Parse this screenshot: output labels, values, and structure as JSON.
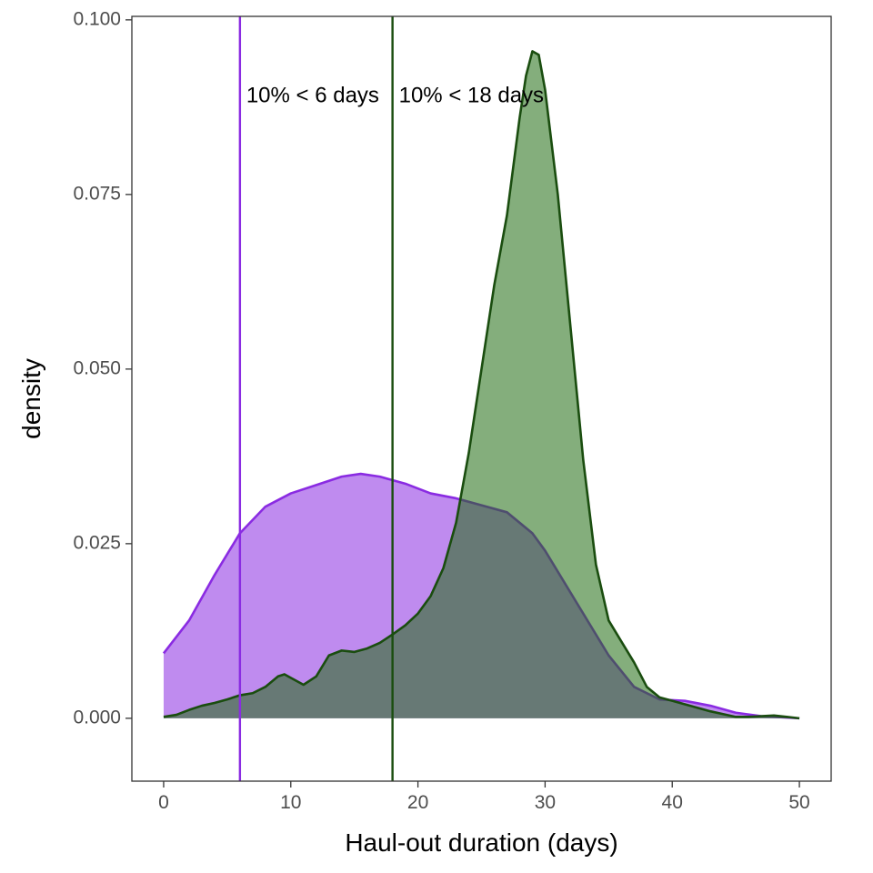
{
  "chart_data": {
    "type": "area",
    "xlabel": "Haul-out duration (days)",
    "ylabel": "density",
    "xlim": [
      -2.5,
      52.5
    ],
    "ylim": [
      -0.009,
      0.1005
    ],
    "x_ticks": [
      0,
      10,
      20,
      30,
      40,
      50
    ],
    "y_ticks": [
      0.0,
      0.025,
      0.05,
      0.075,
      0.1
    ],
    "y_tick_labels": [
      "0.000",
      "0.025",
      "0.050",
      "0.075",
      "0.100"
    ],
    "grid": false,
    "series": [
      {
        "color": "#8a2be2",
        "fill": "#8a2be2",
        "fill_opacity": 0.55,
        "x": [
          0,
          2,
          4,
          6,
          8,
          10,
          12,
          14,
          15.5,
          17,
          19,
          21,
          23,
          25,
          27,
          29,
          30,
          31,
          33,
          35,
          37,
          39,
          41,
          43,
          45,
          47,
          50
        ],
        "y": [
          0.0093,
          0.014,
          0.0205,
          0.0265,
          0.0303,
          0.0322,
          0.0334,
          0.0346,
          0.035,
          0.0346,
          0.0336,
          0.0322,
          0.0315,
          0.0305,
          0.0295,
          0.0265,
          0.024,
          0.021,
          0.015,
          0.009,
          0.0045,
          0.0027,
          0.0025,
          0.0018,
          0.0008,
          0.0003,
          0.0
        ]
      },
      {
        "color": "#1a4d0f",
        "fill": "#1f6b10",
        "fill_opacity": 0.55,
        "x": [
          0,
          1,
          2,
          3,
          4,
          5,
          6,
          7,
          8,
          9,
          9.5,
          10,
          11,
          12,
          13,
          14,
          15,
          16,
          17,
          18,
          19,
          20,
          21,
          22,
          23,
          24,
          25,
          26,
          27,
          28,
          28.5,
          29,
          29.5,
          30,
          31,
          32,
          33,
          34,
          35,
          36,
          37,
          38,
          39,
          40,
          41,
          42,
          43,
          44,
          45,
          46,
          47,
          48,
          49,
          50
        ],
        "y": [
          0.0002,
          0.0005,
          0.0012,
          0.0018,
          0.0022,
          0.0027,
          0.0033,
          0.0036,
          0.0045,
          0.006,
          0.0063,
          0.0058,
          0.0048,
          0.006,
          0.009,
          0.0097,
          0.0095,
          0.01,
          0.0108,
          0.012,
          0.0133,
          0.015,
          0.0175,
          0.0215,
          0.028,
          0.038,
          0.05,
          0.062,
          0.072,
          0.086,
          0.092,
          0.0955,
          0.095,
          0.09,
          0.075,
          0.056,
          0.037,
          0.022,
          0.014,
          0.011,
          0.008,
          0.0045,
          0.003,
          0.0025,
          0.002,
          0.0015,
          0.001,
          0.0006,
          0.0002,
          0.0002,
          0.0003,
          0.0004,
          0.0002,
          0.0
        ]
      }
    ],
    "vlines": [
      {
        "x": 6,
        "color": "#8a2be2"
      },
      {
        "x": 18,
        "color": "#1a4d0f"
      }
    ],
    "annotations": [
      {
        "text": "10% < 6 days",
        "x": 6.5,
        "y": 0.089
      },
      {
        "text": "10% < 18 days",
        "x": 18.5,
        "y": 0.089
      }
    ]
  }
}
